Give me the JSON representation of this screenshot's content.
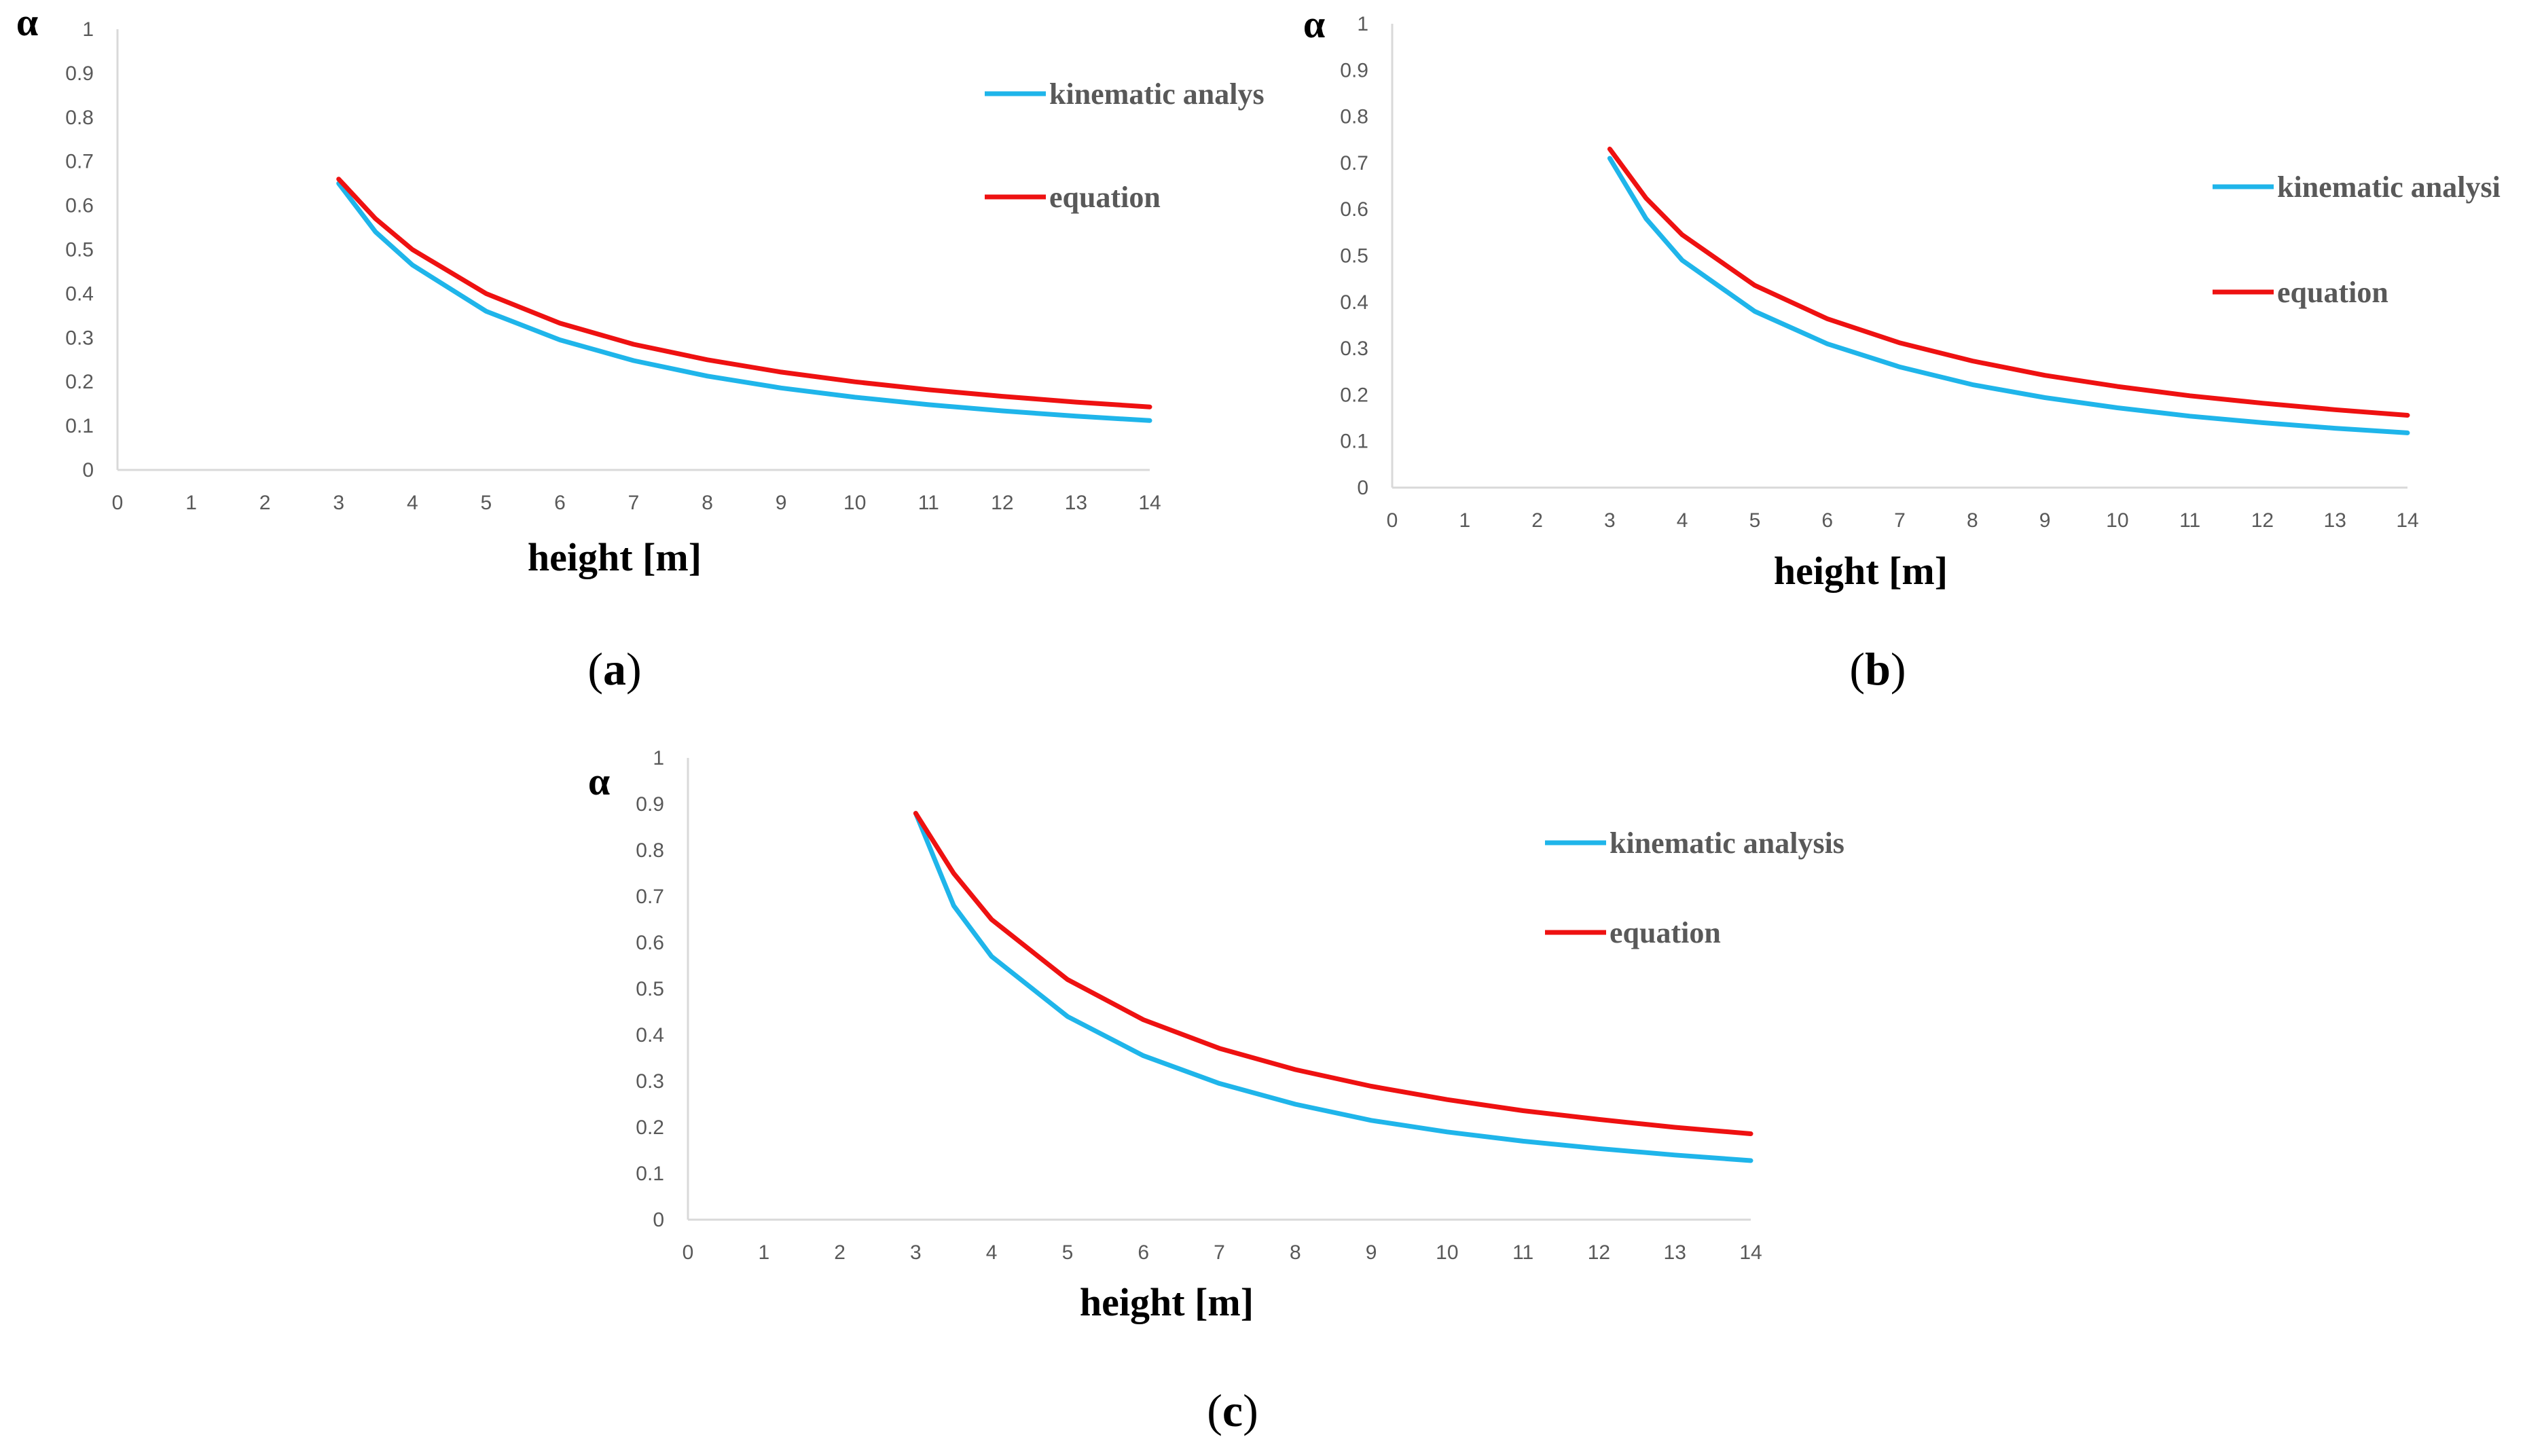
{
  "colors": {
    "kinematic": "#1fb5ea",
    "equation": "#ee1111"
  },
  "chart_data": [
    {
      "id": "a",
      "type": "line",
      "caption": "a",
      "ylabel": "α",
      "xlabel": "height [m]",
      "xlim": [
        0,
        14
      ],
      "ylim": [
        0,
        1
      ],
      "x_ticks": [
        "0",
        "1",
        "2",
        "3",
        "4",
        "5",
        "6",
        "7",
        "8",
        "9",
        "10",
        "11",
        "12",
        "13",
        "14"
      ],
      "y_ticks": [
        "0",
        "0.1",
        "0.2",
        "0.3",
        "0.4",
        "0.5",
        "0.6",
        "0.7",
        "0.8",
        "0.9",
        "1"
      ],
      "x": [
        3,
        3.5,
        4,
        5,
        6,
        7,
        8,
        9,
        10,
        11,
        12,
        13,
        14
      ],
      "series": [
        {
          "name": "kinematic analys",
          "values": [
            0.65,
            0.54,
            0.465,
            0.36,
            0.295,
            0.248,
            0.213,
            0.186,
            0.165,
            0.148,
            0.134,
            0.122,
            0.112
          ]
        },
        {
          "name": "equation",
          "values": [
            0.66,
            0.57,
            0.5,
            0.4,
            0.333,
            0.285,
            0.25,
            0.222,
            0.2,
            0.182,
            0.167,
            0.154,
            0.143
          ]
        }
      ]
    },
    {
      "id": "b",
      "type": "line",
      "caption": "b",
      "ylabel": "α",
      "xlabel": "height [m]",
      "xlim": [
        0,
        14
      ],
      "ylim": [
        0,
        1
      ],
      "x_ticks": [
        "0",
        "1",
        "2",
        "3",
        "4",
        "5",
        "6",
        "7",
        "8",
        "9",
        "10",
        "11",
        "12",
        "13",
        "14"
      ],
      "y_ticks": [
        "0",
        "0.1",
        "0.2",
        "0.3",
        "0.4",
        "0.5",
        "0.6",
        "0.7",
        "0.8",
        "0.9",
        "1"
      ],
      "x": [
        3,
        3.5,
        4,
        5,
        6,
        7,
        8,
        9,
        10,
        11,
        12,
        13,
        14
      ],
      "series": [
        {
          "name": "kinematic analysi",
          "values": [
            0.71,
            0.58,
            0.49,
            0.38,
            0.31,
            0.26,
            0.222,
            0.194,
            0.172,
            0.154,
            0.14,
            0.128,
            0.118
          ]
        },
        {
          "name": "equation",
          "values": [
            0.73,
            0.624,
            0.545,
            0.436,
            0.364,
            0.312,
            0.273,
            0.242,
            0.218,
            0.198,
            0.182,
            0.168,
            0.156
          ]
        }
      ]
    },
    {
      "id": "c",
      "type": "line",
      "caption": "c",
      "ylabel": "α",
      "xlabel": "height [m]",
      "xlim": [
        0,
        14
      ],
      "ylim": [
        0,
        1
      ],
      "x_ticks": [
        "0",
        "1",
        "2",
        "3",
        "4",
        "5",
        "6",
        "7",
        "8",
        "9",
        "10",
        "11",
        "12",
        "13",
        "14"
      ],
      "y_ticks": [
        "0",
        "0.1",
        "0.2",
        "0.3",
        "0.4",
        "0.5",
        "0.6",
        "0.7",
        "0.8",
        "0.9",
        "1"
      ],
      "x": [
        3,
        3.5,
        4,
        5,
        6,
        7,
        8,
        9,
        10,
        11,
        12,
        13,
        14
      ],
      "series": [
        {
          "name": "kinematic analysis",
          "values": [
            0.88,
            0.68,
            0.57,
            0.44,
            0.355,
            0.295,
            0.25,
            0.215,
            0.19,
            0.17,
            0.154,
            0.14,
            0.128
          ]
        },
        {
          "name": "equation",
          "values": [
            0.88,
            0.75,
            0.65,
            0.52,
            0.433,
            0.371,
            0.325,
            0.289,
            0.26,
            0.236,
            0.217,
            0.2,
            0.186
          ]
        }
      ]
    }
  ]
}
